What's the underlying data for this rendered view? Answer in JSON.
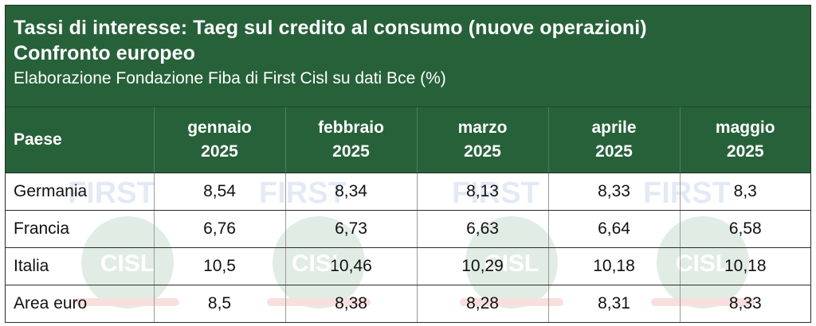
{
  "title": {
    "line1": "Tassi di interesse: Taeg sul credito al consumo (nuove operazioni)",
    "line2": "Confronto europeo",
    "source": "Elaborazione Fondazione Fiba di First Cisl su dati Bce (%)"
  },
  "table": {
    "header": {
      "country": "Paese",
      "months": [
        {
          "month": "gennaio",
          "year": "2025"
        },
        {
          "month": "febbraio",
          "year": "2025"
        },
        {
          "month": "marzo",
          "year": "2025"
        },
        {
          "month": "aprile",
          "year": "2025"
        },
        {
          "month": "maggio",
          "year": "2025"
        }
      ]
    },
    "rows": [
      {
        "country": "Germania",
        "values": [
          "8,54",
          "8,34",
          "8,13",
          "8,33",
          "8,3"
        ]
      },
      {
        "country": "Francia",
        "values": [
          "6,76",
          "6,73",
          "6,63",
          "6,64",
          "6,58"
        ]
      },
      {
        "country": "Italia",
        "values": [
          "10,5",
          "10,46",
          "10,29",
          "10,18",
          "10,18"
        ]
      },
      {
        "country": "Area euro",
        "values": [
          "8,5",
          "8,38",
          "8,28",
          "8,31",
          "8,33"
        ]
      }
    ]
  },
  "watermark": {
    "top_text": "FIRST",
    "logo_text": "CISL"
  },
  "colors": {
    "header_green": "#27613a",
    "watermark_green": "#5fa06f",
    "watermark_red": "#d9534f"
  }
}
